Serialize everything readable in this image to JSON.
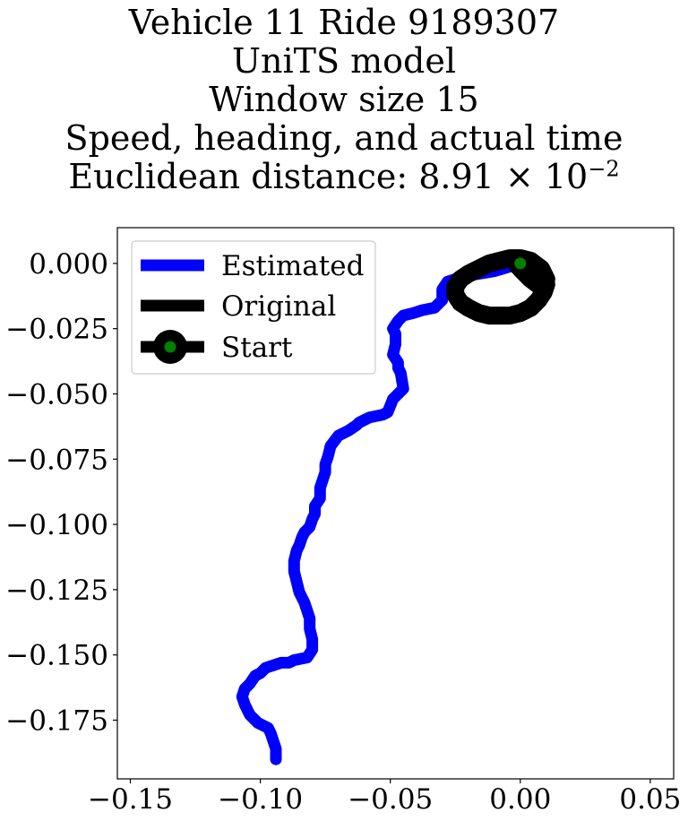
{
  "title_lines": [
    "Vehicle 11 Ride 9189307",
    "UniTS model",
    "Window size 15",
    "Speed, heading, and actual time"
  ],
  "distance_label": "Euclidean distance: 8.91",
  "distance_times": "×",
  "distance_base": "10",
  "distance_exponent": "−2",
  "chart_data": {
    "type": "line",
    "xlim": [
      -0.155,
      0.059
    ],
    "ylim": [
      -0.1975,
      0.0137
    ],
    "x_ticks": [
      -0.15,
      -0.1,
      -0.05,
      0.0,
      0.05
    ],
    "x_tick_labels": [
      "−0.15",
      "−0.10",
      "−0.05",
      "0.00",
      "0.05"
    ],
    "y_ticks": [
      0.0,
      -0.025,
      -0.05,
      -0.075,
      -0.1,
      -0.125,
      -0.15,
      -0.175
    ],
    "y_tick_labels": [
      "0.000",
      "−0.025",
      "−0.050",
      "−0.075",
      "−0.100",
      "−0.125",
      "−0.150",
      "−0.175"
    ],
    "grid": false,
    "legend_position": "top-left",
    "legend": [
      "Estimated",
      "Original",
      "Start"
    ],
    "colors": {
      "estimated": "#0000ff",
      "original": "#000000",
      "start_marker": "#008000"
    },
    "series": [
      {
        "name": "Estimated",
        "color": "#0000ff",
        "x": [
          0.0,
          -0.01,
          -0.022,
          -0.028,
          -0.03,
          -0.03,
          -0.033,
          -0.038,
          -0.041,
          -0.045,
          -0.047,
          -0.049,
          -0.048,
          -0.048,
          -0.049,
          -0.047,
          -0.047,
          -0.046,
          -0.045,
          -0.049,
          -0.051,
          -0.053,
          -0.058,
          -0.062,
          -0.063,
          -0.066,
          -0.07,
          -0.073,
          -0.074,
          -0.075,
          -0.075,
          -0.076,
          -0.077,
          -0.077,
          -0.079,
          -0.079,
          -0.08,
          -0.081,
          -0.083,
          -0.084,
          -0.085,
          -0.086,
          -0.087,
          -0.087,
          -0.086,
          -0.085,
          -0.083,
          -0.082,
          -0.081,
          -0.081,
          -0.08,
          -0.08,
          -0.082,
          -0.087,
          -0.089,
          -0.091,
          -0.092,
          -0.095,
          -0.098,
          -0.1,
          -0.102,
          -0.104,
          -0.106,
          -0.107,
          -0.106,
          -0.104,
          -0.101,
          -0.099,
          -0.097,
          -0.096,
          -0.095,
          -0.094,
          -0.094
        ],
        "y": [
          0.0,
          -0.003,
          -0.005,
          -0.007,
          -0.01,
          -0.014,
          -0.017,
          -0.018,
          -0.019,
          -0.02,
          -0.022,
          -0.025,
          -0.027,
          -0.031,
          -0.035,
          -0.038,
          -0.04,
          -0.042,
          -0.048,
          -0.052,
          -0.057,
          -0.058,
          -0.059,
          -0.061,
          -0.062,
          -0.064,
          -0.066,
          -0.07,
          -0.074,
          -0.077,
          -0.08,
          -0.083,
          -0.086,
          -0.09,
          -0.093,
          -0.096,
          -0.098,
          -0.101,
          -0.103,
          -0.105,
          -0.108,
          -0.11,
          -0.114,
          -0.118,
          -0.122,
          -0.126,
          -0.13,
          -0.133,
          -0.136,
          -0.14,
          -0.144,
          -0.148,
          -0.151,
          -0.152,
          -0.153,
          -0.153,
          -0.153,
          -0.154,
          -0.155,
          -0.157,
          -0.158,
          -0.161,
          -0.163,
          -0.166,
          -0.169,
          -0.173,
          -0.176,
          -0.177,
          -0.178,
          -0.18,
          -0.183,
          -0.186,
          -0.19
        ]
      },
      {
        "name": "Original",
        "color": "#000000",
        "x": [
          0.0,
          0.005,
          0.009,
          0.01,
          0.009,
          0.007,
          0.004,
          0.0,
          -0.004,
          -0.008,
          -0.012,
          -0.016,
          -0.02,
          -0.023,
          -0.025,
          -0.025,
          -0.023,
          -0.02,
          -0.016,
          -0.012,
          -0.008,
          -0.004,
          0.0,
          0.004,
          0.008,
          0.01,
          0.008,
          0.004,
          0.0
        ],
        "y": [
          0.0,
          -0.002,
          -0.005,
          -0.008,
          -0.011,
          -0.014,
          -0.017,
          -0.019,
          -0.02,
          -0.02,
          -0.02,
          -0.019,
          -0.017,
          -0.015,
          -0.012,
          -0.009,
          -0.006,
          -0.004,
          -0.002,
          0.0,
          0.001,
          0.002,
          0.002,
          0.001,
          -0.002,
          -0.006,
          -0.009,
          -0.006,
          -0.002
        ]
      }
    ],
    "start": {
      "x": 0.0,
      "y": 0.0
    }
  }
}
